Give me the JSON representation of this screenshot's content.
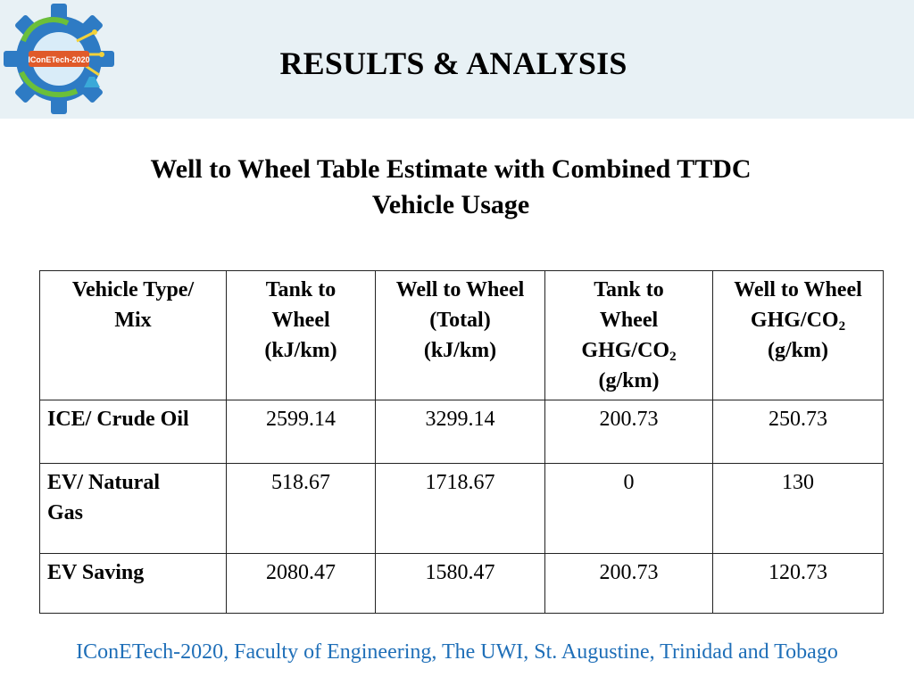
{
  "header": {
    "title": "RESULTS & ANALYSIS",
    "logo_text": "IConETech-2020"
  },
  "subtitle": {
    "line1": "Well to Wheel Table Estimate with Combined TTDC",
    "line2": "Vehicle Usage"
  },
  "table": {
    "columns": [
      {
        "lines": [
          "Vehicle Type/",
          "Mix"
        ]
      },
      {
        "lines": [
          "Tank to",
          "Wheel",
          "(kJ/km)"
        ]
      },
      {
        "lines": [
          "Well to Wheel",
          "(Total)",
          "(kJ/km)"
        ]
      },
      {
        "lines": [
          "Tank to",
          "Wheel",
          "GHG/CO",
          "(g/km)"
        ],
        "sub": "2"
      },
      {
        "lines": [
          "Well to Wheel",
          "GHG/CO",
          "(g/km)"
        ],
        "sub": "2"
      }
    ],
    "rows": [
      {
        "label": "ICE/ Crude Oil",
        "values": [
          "2599.14",
          "3299.14",
          "200.73",
          "250.73"
        ]
      },
      {
        "label_lines": [
          "EV/ Natural",
          "Gas"
        ],
        "values": [
          "518.67",
          "1718.67",
          "0",
          "130"
        ]
      },
      {
        "label": "EV Saving",
        "values": [
          "2080.47",
          "1580.47",
          "200.73",
          "120.73"
        ]
      }
    ]
  },
  "footer": {
    "text": "IConETech-2020, Faculty of Engineering, The UWI, St. Augustine, Trinidad and Tobago"
  },
  "colors": {
    "header_band": "#e8f1f5",
    "footer_text": "#1f6fb8",
    "logo_gear": "#2e7bc4"
  }
}
